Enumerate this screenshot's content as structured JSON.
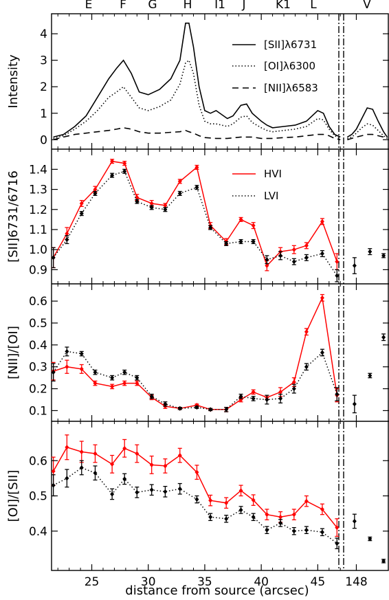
{
  "chart_data": {
    "type": "line",
    "xlabel": "distance from source (arcsec)",
    "x_ticks": [
      "25",
      "30",
      "35",
      "40",
      "45"
    ],
    "x_ticks_right": [
      "148"
    ],
    "knots": [
      "E",
      "F",
      "G",
      "H",
      "I1",
      "J",
      "K1",
      "L",
      "V"
    ],
    "panels": [
      {
        "id": "intensity",
        "ylabel": "Intensity",
        "ylim": [
          -0.2,
          4.6
        ],
        "yticks": [
          "0",
          "1",
          "2",
          "3",
          "4"
        ],
        "legend": [
          "[SII]λ6731",
          "[OI]λ6300",
          "[NII]λ6583"
        ],
        "series": [
          {
            "name": "[SII]λ6731",
            "style": "solid",
            "x": [
              21.6,
              22.5,
              23.5,
              24.5,
              25.5,
              26.5,
              27.2,
              27.8,
              28.5,
              29.2,
              30.0,
              31.0,
              32.0,
              32.8,
              33.3,
              33.6,
              34.0,
              34.5,
              35.0,
              35.5,
              36.0,
              37.0,
              37.5,
              38.2,
              38.7,
              39.2,
              40.0,
              40.5,
              41.0,
              42.0,
              43.0,
              44.0,
              45.0,
              45.5,
              46.0,
              46.5,
              47.0
            ],
            "y": [
              0.1,
              0.2,
              0.5,
              0.9,
              1.6,
              2.3,
              2.7,
              3.0,
              2.5,
              1.8,
              1.7,
              1.9,
              2.3,
              3.0,
              4.4,
              4.4,
              3.5,
              2.0,
              1.1,
              1.0,
              1.1,
              0.8,
              0.9,
              1.3,
              1.35,
              1.0,
              0.7,
              0.55,
              0.45,
              0.5,
              0.55,
              0.7,
              1.1,
              1.0,
              0.5,
              0.2,
              0.1
            ]
          },
          {
            "name": "[OI]λ6300",
            "style": "dotted",
            "x": [
              21.6,
              22.5,
              23.5,
              24.5,
              25.5,
              26.5,
              27.2,
              27.8,
              28.5,
              29.2,
              30.0,
              31.0,
              32.0,
              32.8,
              33.3,
              33.6,
              34.0,
              34.5,
              35.0,
              35.5,
              36.0,
              37.0,
              37.5,
              38.2,
              38.7,
              39.2,
              40.0,
              40.5,
              41.0,
              42.0,
              43.0,
              44.0,
              45.0,
              45.5,
              46.0,
              46.5,
              47.0
            ],
            "y": [
              0.05,
              0.15,
              0.4,
              0.7,
              1.1,
              1.6,
              1.8,
              2.0,
              1.6,
              1.2,
              1.1,
              1.25,
              1.5,
              2.1,
              2.9,
              3.0,
              2.5,
              1.3,
              0.7,
              0.6,
              0.6,
              0.5,
              0.6,
              0.85,
              0.9,
              0.65,
              0.45,
              0.35,
              0.3,
              0.35,
              0.4,
              0.5,
              0.8,
              0.75,
              0.4,
              0.15,
              0.05
            ]
          },
          {
            "name": "[NII]λ6583",
            "style": "dashed",
            "x": [
              21.6,
              22.5,
              23.5,
              24.5,
              25.5,
              26.5,
              27.2,
              27.8,
              28.5,
              29.2,
              30.0,
              31.0,
              32.0,
              32.8,
              33.3,
              33.6,
              34.0,
              34.5,
              35.0,
              36.0,
              37.0,
              38.2,
              39.2,
              40.0,
              41.0,
              42.0,
              43.0,
              44.0,
              45.0,
              45.5,
              46.0,
              46.5,
              47.0
            ],
            "y": [
              0.0,
              0.1,
              0.2,
              0.25,
              0.3,
              0.35,
              0.4,
              0.45,
              0.4,
              0.3,
              0.25,
              0.25,
              0.28,
              0.3,
              0.35,
              0.3,
              0.25,
              0.15,
              0.08,
              0.05,
              0.05,
              0.1,
              0.1,
              0.05,
              0.05,
              0.08,
              0.1,
              0.15,
              0.2,
              0.2,
              0.15,
              0.05,
              0.0
            ]
          }
        ],
        "right_series": [
          {
            "style": "solid",
            "x": [
              147.0,
              147.5,
              148.0,
              148.6,
              149.2,
              149.8,
              150.4,
              151.0,
              151.4
            ],
            "y": [
              0.1,
              0.2,
              0.4,
              0.8,
              1.2,
              1.15,
              0.7,
              0.3,
              0.1
            ]
          },
          {
            "style": "dotted",
            "x": [
              147.0,
              147.5,
              148.0,
              148.6,
              149.2,
              149.8,
              150.4,
              151.0,
              151.4
            ],
            "y": [
              0.05,
              0.1,
              0.25,
              0.45,
              0.6,
              0.55,
              0.35,
              0.15,
              0.05
            ]
          },
          {
            "style": "dashed",
            "x": [
              147.0,
              147.5,
              148.0,
              148.6,
              149.2,
              149.8,
              150.4,
              151.0,
              151.4
            ],
            "y": [
              0.0,
              0.05,
              0.1,
              0.15,
              0.2,
              0.2,
              0.15,
              0.1,
              0.05
            ]
          }
        ]
      },
      {
        "id": "sii-ratio",
        "ylabel": "[SII]6731/6716",
        "ylim": [
          0.85,
          1.48
        ],
        "yticks": [
          "0.9",
          "1.0",
          "1.1",
          "1.2",
          "1.3",
          "1.4"
        ],
        "legend": [
          "HVI",
          "LVI"
        ],
        "series": [
          {
            "name": "HVI",
            "color": "#ff0000",
            "style": "solid",
            "x": [
              21.6,
              22.8,
              24.1,
              25.3,
              26.8,
              27.9,
              29.0,
              30.3,
              31.5,
              32.8,
              34.3,
              35.5,
              36.9,
              38.2,
              39.3,
              40.5,
              41.7,
              42.9,
              44.0,
              45.4,
              46.7
            ],
            "y": [
              0.96,
              1.08,
              1.23,
              1.3,
              1.44,
              1.43,
              1.26,
              1.23,
              1.22,
              1.34,
              1.41,
              1.12,
              1.04,
              1.15,
              1.12,
              0.92,
              0.99,
              1.0,
              1.02,
              1.14,
              0.94
            ],
            "err": [
              0.05,
              0.03,
              0.015,
              0.015,
              0.01,
              0.01,
              0.015,
              0.015,
              0.01,
              0.01,
              0.01,
              0.015,
              0.015,
              0.01,
              0.015,
              0.025,
              0.02,
              0.02,
              0.015,
              0.015,
              0.04
            ]
          },
          {
            "name": "LVI",
            "color": "#000000",
            "style": "dotted",
            "x": [
              21.6,
              22.8,
              24.1,
              25.3,
              26.8,
              27.9,
              29.0,
              30.3,
              31.5,
              32.8,
              34.3,
              35.5,
              36.9,
              38.2,
              39.3,
              40.5,
              41.7,
              42.9,
              44.0,
              45.4,
              46.7
            ],
            "y": [
              0.96,
              1.05,
              1.18,
              1.28,
              1.37,
              1.39,
              1.24,
              1.21,
              1.2,
              1.28,
              1.31,
              1.11,
              1.03,
              1.04,
              1.04,
              0.95,
              0.97,
              0.94,
              0.96,
              0.98,
              0.87
            ],
            "err": [
              0.05,
              0.02,
              0.01,
              0.01,
              0.01,
              0.01,
              0.01,
              0.01,
              0.01,
              0.01,
              0.01,
              0.01,
              0.01,
              0.01,
              0.01,
              0.02,
              0.02,
              0.015,
              0.015,
              0.015,
              0.03
            ]
          }
        ],
        "right_points": {
          "x": [
            147.8,
            149.5,
            151.0
          ],
          "y": [
            0.92,
            0.99,
            0.97
          ],
          "err": [
            0.04,
            0.015,
            0.01
          ]
        }
      },
      {
        "id": "nii-oi",
        "ylabel": "[NII]/[OI]",
        "ylim": [
          0.07,
          0.66
        ],
        "yticks": [
          "0.1",
          "0.2",
          "0.3",
          "0.4",
          "0.5",
          "0.6"
        ],
        "series": [
          {
            "name": "HVI",
            "color": "#ff0000",
            "style": "solid",
            "x": [
              21.6,
              22.8,
              24.1,
              25.3,
              26.8,
              27.9,
              29.0,
              30.3,
              31.5,
              32.8,
              34.3,
              35.5,
              36.9,
              38.2,
              39.3,
              40.5,
              41.7,
              42.9,
              44.0,
              45.4,
              46.7
            ],
            "y": [
              0.28,
              0.3,
              0.29,
              0.225,
              0.21,
              0.225,
              0.225,
              0.16,
              0.12,
              0.11,
              0.125,
              0.105,
              0.105,
              0.15,
              0.185,
              0.16,
              0.185,
              0.23,
              0.46,
              0.615,
              0.17
            ],
            "err": [
              0.04,
              0.03,
              0.02,
              0.01,
              0.01,
              0.01,
              0.01,
              0.01,
              0.01,
              0.005,
              0.005,
              0.005,
              0.01,
              0.01,
              0.01,
              0.01,
              0.02,
              0.02,
              0.015,
              0.015,
              0.03
            ]
          },
          {
            "name": "LVI",
            "color": "#000000",
            "style": "dotted",
            "x": [
              21.6,
              22.8,
              24.1,
              25.3,
              26.8,
              27.9,
              29.0,
              30.3,
              31.5,
              32.8,
              34.3,
              35.5,
              36.9,
              38.2,
              39.3,
              40.5,
              41.7,
              42.9,
              44.0,
              45.4,
              46.7
            ],
            "y": [
              0.275,
              0.37,
              0.36,
              0.275,
              0.25,
              0.275,
              0.25,
              0.165,
              0.13,
              0.11,
              0.115,
              0.105,
              0.105,
              0.165,
              0.155,
              0.15,
              0.155,
              0.2,
              0.3,
              0.365,
              0.175
            ],
            "err": [
              0.04,
              0.02,
              0.01,
              0.01,
              0.01,
              0.01,
              0.01,
              0.01,
              0.01,
              0.005,
              0.005,
              0.005,
              0.01,
              0.01,
              0.01,
              0.02,
              0.02,
              0.02,
              0.015,
              0.015,
              0.03
            ]
          }
        ],
        "right_points": {
          "x": [
            147.8,
            149.5,
            151.0
          ],
          "y": [
            0.13,
            0.26,
            0.435
          ],
          "err": [
            0.04,
            0.01,
            0.015
          ]
        }
      },
      {
        "id": "oi-sii",
        "ylabel": "[OI]/[SII]",
        "ylim": [
          0.3,
          0.7
        ],
        "yticks": [
          "0.4",
          "0.5",
          "0.6"
        ],
        "series": [
          {
            "name": "HVI",
            "color": "#ff0000",
            "style": "solid",
            "x": [
              21.6,
              22.8,
              24.1,
              25.3,
              26.8,
              27.9,
              29.0,
              30.3,
              31.5,
              32.8,
              34.3,
              35.5,
              36.9,
              38.2,
              39.3,
              40.5,
              41.7,
              42.9,
              44.0,
              45.4,
              46.7
            ],
            "y": [
              0.57,
              0.638,
              0.625,
              0.62,
              0.59,
              0.635,
              0.62,
              0.588,
              0.585,
              0.615,
              0.567,
              0.487,
              0.48,
              0.515,
              0.488,
              0.447,
              0.44,
              0.447,
              0.485,
              0.462,
              0.41
            ],
            "err": [
              0.04,
              0.035,
              0.03,
              0.025,
              0.025,
              0.025,
              0.025,
              0.025,
              0.02,
              0.02,
              0.02,
              0.015,
              0.015,
              0.015,
              0.015,
              0.015,
              0.015,
              0.015,
              0.015,
              0.015,
              0.025
            ]
          },
          {
            "name": "LVI",
            "color": "#000000",
            "style": "dotted",
            "x": [
              21.6,
              22.8,
              24.1,
              25.3,
              26.8,
              27.9,
              29.0,
              30.3,
              31.5,
              32.8,
              34.3,
              35.5,
              36.9,
              38.2,
              39.3,
              40.5,
              41.7,
              42.9,
              44.0,
              45.4,
              46.7
            ],
            "y": [
              0.53,
              0.55,
              0.58,
              0.565,
              0.505,
              0.548,
              0.51,
              0.517,
              0.512,
              0.52,
              0.49,
              0.44,
              0.435,
              0.46,
              0.44,
              0.403,
              0.423,
              0.4,
              0.403,
              0.397,
              0.365
            ],
            "err": [
              0.03,
              0.025,
              0.02,
              0.02,
              0.015,
              0.015,
              0.015,
              0.015,
              0.015,
              0.015,
              0.01,
              0.01,
              0.01,
              0.01,
              0.01,
              0.01,
              0.01,
              0.01,
              0.01,
              0.01,
              0.015
            ]
          }
        ],
        "right_points": {
          "x": [
            147.8,
            149.5,
            151.0
          ],
          "y": [
            0.428,
            0.378,
            0.315
          ],
          "err": [
            0.02,
            0.005,
            0.005
          ]
        }
      }
    ]
  }
}
